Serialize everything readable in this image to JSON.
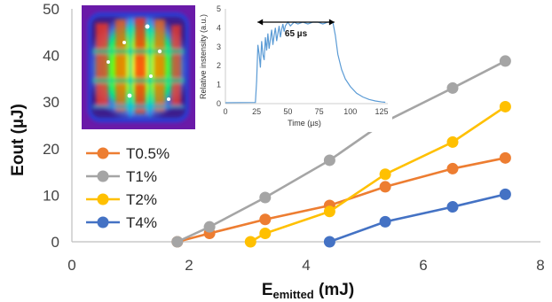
{
  "chart_data": [
    {
      "type": "line",
      "xlabel": "E",
      "xlabel_sub": "emitted",
      "xlabel_unit": " (mJ)",
      "ylabel": "Eout (µJ)",
      "xlim": [
        0,
        8
      ],
      "ylim": [
        0,
        50
      ],
      "xticks": [
        "0",
        "2",
        "4",
        "6",
        "8"
      ],
      "yticks": [
        "0",
        "10",
        "20",
        "30",
        "40",
        "50"
      ],
      "grid": false,
      "legend_position": "left",
      "series": [
        {
          "name": "T0.5%",
          "color": "#ED7D31",
          "x": [
            1.8,
            2.35,
            3.3,
            4.4,
            5.35,
            6.5,
            7.4
          ],
          "y": [
            0.0,
            1.8,
            4.8,
            7.8,
            11.8,
            15.7,
            18.0
          ]
        },
        {
          "name": "T1%",
          "color": "#A5A5A5",
          "x": [
            1.8,
            2.35,
            3.3,
            4.4,
            5.35,
            6.5,
            7.4
          ],
          "y": [
            0.0,
            3.2,
            9.5,
            17.5,
            25.8,
            33.0,
            38.8
          ]
        },
        {
          "name": "T2%",
          "color": "#FFC000",
          "x": [
            3.05,
            3.3,
            4.4,
            5.35,
            6.5,
            7.4
          ],
          "y": [
            0.0,
            1.8,
            6.5,
            14.5,
            21.4,
            29.0
          ]
        },
        {
          "name": "T4%",
          "color": "#4472C4",
          "x": [
            4.4,
            5.35,
            6.5,
            7.4
          ],
          "y": [
            0.0,
            4.3,
            7.5,
            10.2
          ]
        }
      ]
    },
    {
      "type": "line",
      "xlabel": "Time (µs)",
      "ylabel": "Relative instensity (a.u.)",
      "xlim": [
        0,
        130
      ],
      "ylim": [
        0,
        5
      ],
      "xticks": [
        "0",
        "25",
        "50",
        "75",
        "100",
        "125"
      ],
      "yticks": [
        "0",
        "1",
        "2",
        "3",
        "4",
        "5"
      ],
      "annotation": "65 µs",
      "annotation_range": [
        25,
        88
      ],
      "series": [
        {
          "color": "#5B9BD5",
          "x": [
            0,
            24,
            25,
            26,
            27,
            28,
            29,
            30,
            31,
            32,
            33,
            34,
            35,
            36,
            37,
            38,
            39,
            40,
            41,
            42,
            43,
            44,
            45,
            46,
            47,
            48,
            50,
            52,
            55,
            58,
            62,
            66,
            70,
            74,
            78,
            82,
            86,
            88,
            90,
            93,
            96,
            100,
            105,
            110,
            115,
            120,
            125,
            128
          ],
          "y": [
            0.05,
            0.06,
            1.2,
            3.1,
            2.6,
            1.9,
            3.3,
            2.6,
            2.3,
            3.5,
            2.8,
            3.7,
            2.9,
            3.4,
            3.9,
            3.1,
            3.6,
            4.0,
            3.3,
            3.7,
            4.1,
            3.5,
            3.9,
            4.2,
            3.8,
            4.1,
            4.3,
            4.1,
            4.3,
            4.2,
            4.3,
            4.2,
            4.3,
            4.3,
            4.2,
            4.3,
            4.3,
            3.6,
            2.6,
            1.8,
            1.3,
            0.9,
            0.55,
            0.35,
            0.22,
            0.14,
            0.09,
            0.07
          ]
        }
      ]
    }
  ]
}
